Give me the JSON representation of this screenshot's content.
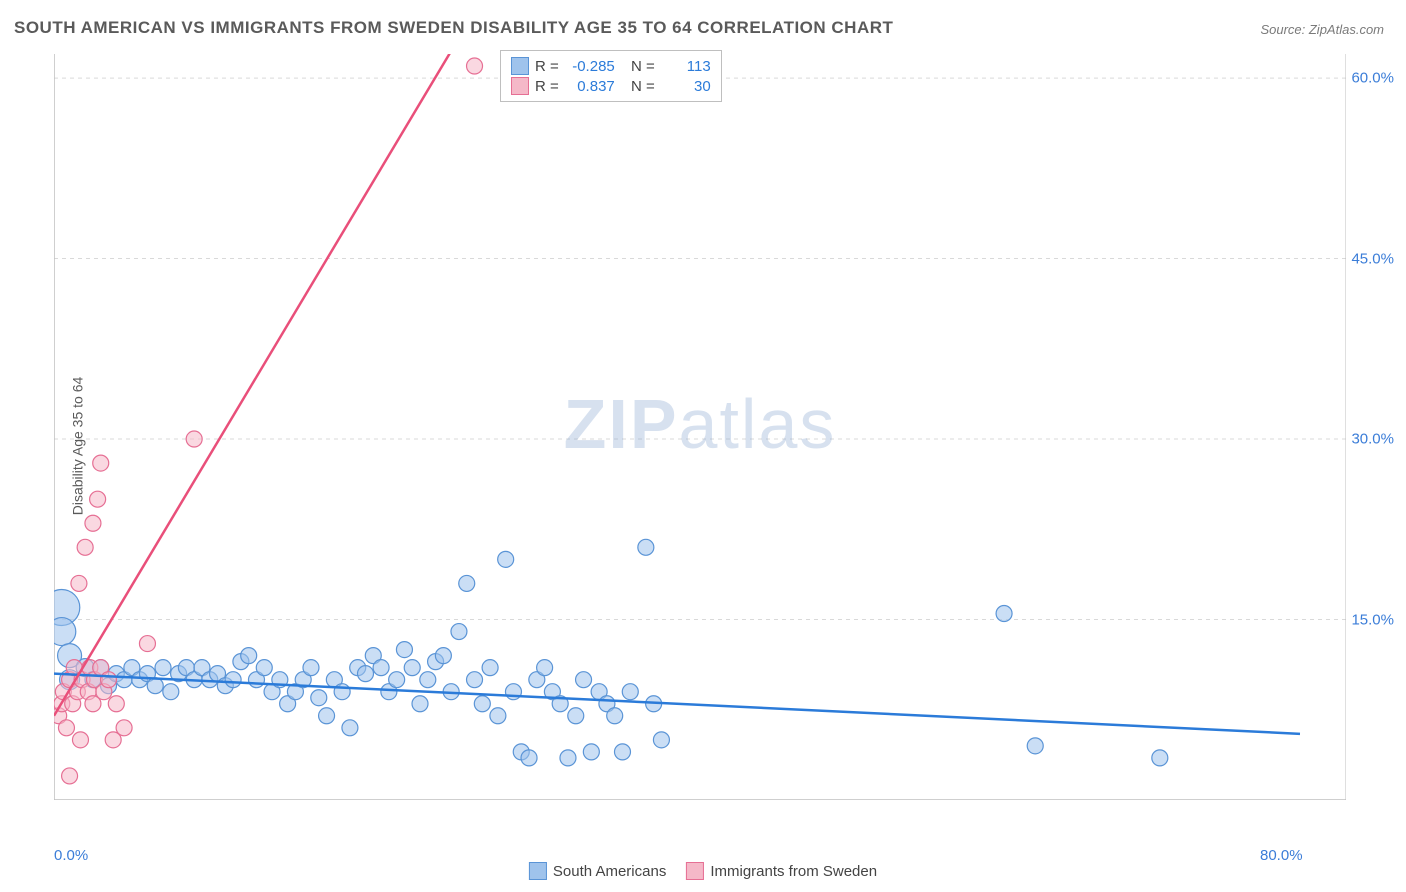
{
  "title": "SOUTH AMERICAN VS IMMIGRANTS FROM SWEDEN DISABILITY AGE 35 TO 64 CORRELATION CHART",
  "source": "Source: ZipAtlas.com",
  "y_axis_label": "Disability Age 35 to 64",
  "watermark": {
    "part1": "ZIP",
    "part2": "atlas"
  },
  "chart": {
    "type": "scatter",
    "background_color": "#ffffff",
    "grid_color": "#d9d9d9",
    "axis_line_color": "#bfbfbf",
    "xlim": [
      0,
      80
    ],
    "ylim": [
      0,
      62
    ],
    "x_ticks": [
      {
        "v": 0,
        "label": "0.0%"
      },
      {
        "v": 80,
        "label": "80.0%"
      }
    ],
    "y_ticks": [
      {
        "v": 15,
        "label": "15.0%"
      },
      {
        "v": 30,
        "label": "30.0%"
      },
      {
        "v": 45,
        "label": "45.0%"
      },
      {
        "v": 60,
        "label": "60.0%"
      }
    ],
    "marker_radius_min": 7,
    "marker_radius_max": 18,
    "marker_opacity": 0.55,
    "trendline_width": 2.5,
    "series": [
      {
        "name": "South Americans",
        "legend_label": "South Americans",
        "fill_color": "#9fc3ec",
        "stroke_color": "#5a94d6",
        "trend_color": "#2b7bd9",
        "trend": {
          "x1": 0,
          "y1": 10.5,
          "x2": 80,
          "y2": 5.5
        },
        "stats": {
          "R": "-0.285",
          "N": "113"
        },
        "points": [
          {
            "x": 0.5,
            "y": 16,
            "r": 18
          },
          {
            "x": 0.5,
            "y": 14,
            "r": 14
          },
          {
            "x": 1,
            "y": 12,
            "r": 12
          },
          {
            "x": 1,
            "y": 10,
            "r": 10
          },
          {
            "x": 2,
            "y": 11,
            "r": 9
          },
          {
            "x": 2.5,
            "y": 10,
            "r": 8
          },
          {
            "x": 3,
            "y": 11,
            "r": 8
          },
          {
            "x": 3.5,
            "y": 9.5,
            "r": 8
          },
          {
            "x": 4,
            "y": 10.5,
            "r": 8
          },
          {
            "x": 4.5,
            "y": 10,
            "r": 8
          },
          {
            "x": 5,
            "y": 11,
            "r": 8
          },
          {
            "x": 5.5,
            "y": 10,
            "r": 8
          },
          {
            "x": 6,
            "y": 10.5,
            "r": 8
          },
          {
            "x": 6.5,
            "y": 9.5,
            "r": 8
          },
          {
            "x": 7,
            "y": 11,
            "r": 8
          },
          {
            "x": 7.5,
            "y": 9,
            "r": 8
          },
          {
            "x": 8,
            "y": 10.5,
            "r": 8
          },
          {
            "x": 8.5,
            "y": 11,
            "r": 8
          },
          {
            "x": 9,
            "y": 10,
            "r": 8
          },
          {
            "x": 9.5,
            "y": 11,
            "r": 8
          },
          {
            "x": 10,
            "y": 10,
            "r": 8
          },
          {
            "x": 10.5,
            "y": 10.5,
            "r": 8
          },
          {
            "x": 11,
            "y": 9.5,
            "r": 8
          },
          {
            "x": 11.5,
            "y": 10,
            "r": 8
          },
          {
            "x": 12,
            "y": 11.5,
            "r": 8
          },
          {
            "x": 12.5,
            "y": 12,
            "r": 8
          },
          {
            "x": 13,
            "y": 10,
            "r": 8
          },
          {
            "x": 13.5,
            "y": 11,
            "r": 8
          },
          {
            "x": 14,
            "y": 9,
            "r": 8
          },
          {
            "x": 14.5,
            "y": 10,
            "r": 8
          },
          {
            "x": 15,
            "y": 8,
            "r": 8
          },
          {
            "x": 15.5,
            "y": 9,
            "r": 8
          },
          {
            "x": 16,
            "y": 10,
            "r": 8
          },
          {
            "x": 16.5,
            "y": 11,
            "r": 8
          },
          {
            "x": 17,
            "y": 8.5,
            "r": 8
          },
          {
            "x": 17.5,
            "y": 7,
            "r": 8
          },
          {
            "x": 18,
            "y": 10,
            "r": 8
          },
          {
            "x": 18.5,
            "y": 9,
            "r": 8
          },
          {
            "x": 19,
            "y": 6,
            "r": 8
          },
          {
            "x": 19.5,
            "y": 11,
            "r": 8
          },
          {
            "x": 20,
            "y": 10.5,
            "r": 8
          },
          {
            "x": 20.5,
            "y": 12,
            "r": 8
          },
          {
            "x": 21,
            "y": 11,
            "r": 8
          },
          {
            "x": 21.5,
            "y": 9,
            "r": 8
          },
          {
            "x": 22,
            "y": 10,
            "r": 8
          },
          {
            "x": 22.5,
            "y": 12.5,
            "r": 8
          },
          {
            "x": 23,
            "y": 11,
            "r": 8
          },
          {
            "x": 23.5,
            "y": 8,
            "r": 8
          },
          {
            "x": 24,
            "y": 10,
            "r": 8
          },
          {
            "x": 24.5,
            "y": 11.5,
            "r": 8
          },
          {
            "x": 25,
            "y": 12,
            "r": 8
          },
          {
            "x": 25.5,
            "y": 9,
            "r": 8
          },
          {
            "x": 26,
            "y": 14,
            "r": 8
          },
          {
            "x": 26.5,
            "y": 18,
            "r": 8
          },
          {
            "x": 27,
            "y": 10,
            "r": 8
          },
          {
            "x": 27.5,
            "y": 8,
            "r": 8
          },
          {
            "x": 28,
            "y": 11,
            "r": 8
          },
          {
            "x": 28.5,
            "y": 7,
            "r": 8
          },
          {
            "x": 29,
            "y": 20,
            "r": 8
          },
          {
            "x": 29.5,
            "y": 9,
            "r": 8
          },
          {
            "x": 30,
            "y": 4,
            "r": 8
          },
          {
            "x": 30.5,
            "y": 3.5,
            "r": 8
          },
          {
            "x": 31,
            "y": 10,
            "r": 8
          },
          {
            "x": 31.5,
            "y": 11,
            "r": 8
          },
          {
            "x": 32,
            "y": 9,
            "r": 8
          },
          {
            "x": 32.5,
            "y": 8,
            "r": 8
          },
          {
            "x": 33,
            "y": 3.5,
            "r": 8
          },
          {
            "x": 33.5,
            "y": 7,
            "r": 8
          },
          {
            "x": 34,
            "y": 10,
            "r": 8
          },
          {
            "x": 34.5,
            "y": 4,
            "r": 8
          },
          {
            "x": 35,
            "y": 9,
            "r": 8
          },
          {
            "x": 35.5,
            "y": 8,
            "r": 8
          },
          {
            "x": 36,
            "y": 7,
            "r": 8
          },
          {
            "x": 36.5,
            "y": 4,
            "r": 8
          },
          {
            "x": 37,
            "y": 9,
            "r": 8
          },
          {
            "x": 38,
            "y": 21,
            "r": 8
          },
          {
            "x": 38.5,
            "y": 8,
            "r": 8
          },
          {
            "x": 39,
            "y": 5,
            "r": 8
          },
          {
            "x": 61,
            "y": 15.5,
            "r": 8
          },
          {
            "x": 63,
            "y": 4.5,
            "r": 8
          },
          {
            "x": 71,
            "y": 3.5,
            "r": 8
          }
        ]
      },
      {
        "name": "Immigrants from Sweden",
        "legend_label": "Immigrants from Sweden",
        "fill_color": "#f5b8c8",
        "stroke_color": "#e66f94",
        "trend_color": "#e94f7a",
        "trend": {
          "x1": 0,
          "y1": 7,
          "x2": 30,
          "y2": 72
        },
        "stats": {
          "R": "0.837",
          "N": "30"
        },
        "points": [
          {
            "x": 0.3,
            "y": 7,
            "r": 8
          },
          {
            "x": 0.5,
            "y": 8,
            "r": 8
          },
          {
            "x": 0.6,
            "y": 9,
            "r": 8
          },
          {
            "x": 0.8,
            "y": 6,
            "r": 8
          },
          {
            "x": 1,
            "y": 10,
            "r": 8
          },
          {
            "x": 1,
            "y": 2,
            "r": 8
          },
          {
            "x": 1.2,
            "y": 8,
            "r": 8
          },
          {
            "x": 1.3,
            "y": 11,
            "r": 8
          },
          {
            "x": 1.5,
            "y": 9,
            "r": 8
          },
          {
            "x": 1.6,
            "y": 18,
            "r": 8
          },
          {
            "x": 1.7,
            "y": 5,
            "r": 8
          },
          {
            "x": 1.8,
            "y": 10,
            "r": 8
          },
          {
            "x": 2,
            "y": 21,
            "r": 8
          },
          {
            "x": 2.2,
            "y": 9,
            "r": 8
          },
          {
            "x": 2.3,
            "y": 11,
            "r": 8
          },
          {
            "x": 2.5,
            "y": 8,
            "r": 8
          },
          {
            "x": 2.5,
            "y": 23,
            "r": 8
          },
          {
            "x": 2.6,
            "y": 10,
            "r": 8
          },
          {
            "x": 2.8,
            "y": 25,
            "r": 8
          },
          {
            "x": 3,
            "y": 11,
            "r": 8
          },
          {
            "x": 3,
            "y": 28,
            "r": 8
          },
          {
            "x": 3.2,
            "y": 9,
            "r": 8
          },
          {
            "x": 3.5,
            "y": 10,
            "r": 8
          },
          {
            "x": 3.8,
            "y": 5,
            "r": 8
          },
          {
            "x": 4,
            "y": 8,
            "r": 8
          },
          {
            "x": 4.5,
            "y": 6,
            "r": 8
          },
          {
            "x": 6,
            "y": 13,
            "r": 8
          },
          {
            "x": 9,
            "y": 30,
            "r": 8
          },
          {
            "x": 27,
            "y": 61,
            "r": 8
          }
        ]
      }
    ],
    "stats_box": {
      "labels": {
        "R_prefix": "R =",
        "N_prefix": "N ="
      }
    }
  },
  "legend_position": "bottom-center"
}
